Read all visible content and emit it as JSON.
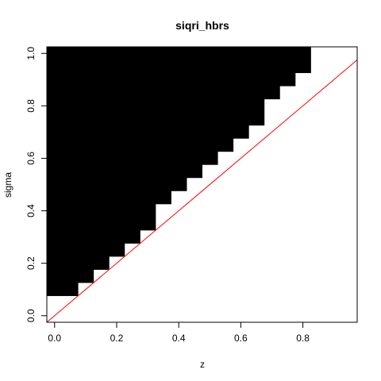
{
  "chart_data": {
    "type": "heatmap",
    "title": "siqri_hbrs",
    "xlabel": "z",
    "ylabel": "sigma",
    "xlim": [
      -0.025,
      0.975
    ],
    "ylim": [
      -0.025,
      1.025
    ],
    "x_ticks": [
      0.0,
      0.2,
      0.4,
      0.6,
      0.8
    ],
    "x_tick_labels": [
      "0.0",
      "0.2",
      "0.4",
      "0.6",
      "0.8"
    ],
    "y_ticks": [
      0.0,
      0.2,
      0.4,
      0.6,
      0.8,
      1.0
    ],
    "y_tick_labels": [
      "0.0",
      "0.2",
      "0.4",
      "0.6",
      "0.8",
      "1.0"
    ],
    "grid": false,
    "fill_color": "#000000",
    "region": {
      "description_of_values": "black region: for each z column, sigma from lower boundary up to 1.025",
      "z_step": 0.05,
      "columns": [
        {
          "z_from": -0.025,
          "z_to": 0.075,
          "sigma_min": 0.075
        },
        {
          "z_from": 0.075,
          "z_to": 0.125,
          "sigma_min": 0.125
        },
        {
          "z_from": 0.125,
          "z_to": 0.175,
          "sigma_min": 0.175
        },
        {
          "z_from": 0.175,
          "z_to": 0.225,
          "sigma_min": 0.225
        },
        {
          "z_from": 0.225,
          "z_to": 0.275,
          "sigma_min": 0.275
        },
        {
          "z_from": 0.275,
          "z_to": 0.325,
          "sigma_min": 0.325
        },
        {
          "z_from": 0.325,
          "z_to": 0.375,
          "sigma_min": 0.425
        },
        {
          "z_from": 0.375,
          "z_to": 0.425,
          "sigma_min": 0.475
        },
        {
          "z_from": 0.425,
          "z_to": 0.475,
          "sigma_min": 0.525
        },
        {
          "z_from": 0.475,
          "z_to": 0.525,
          "sigma_min": 0.575
        },
        {
          "z_from": 0.525,
          "z_to": 0.575,
          "sigma_min": 0.625
        },
        {
          "z_from": 0.575,
          "z_to": 0.625,
          "sigma_min": 0.675
        },
        {
          "z_from": 0.625,
          "z_to": 0.675,
          "sigma_min": 0.725
        },
        {
          "z_from": 0.675,
          "z_to": 0.725,
          "sigma_min": 0.825
        },
        {
          "z_from": 0.725,
          "z_to": 0.775,
          "sigma_min": 0.875
        },
        {
          "z_from": 0.775,
          "z_to": 0.825,
          "sigma_min": 0.925
        },
        {
          "z_from": 0.825,
          "z_to": 0.975,
          "sigma_min": 1.025
        }
      ],
      "sigma_max": 1.025
    },
    "reference_line": {
      "color": "#ff0000",
      "points": [
        [
          -0.025,
          -0.025
        ],
        [
          0.975,
          0.975
        ]
      ]
    }
  }
}
